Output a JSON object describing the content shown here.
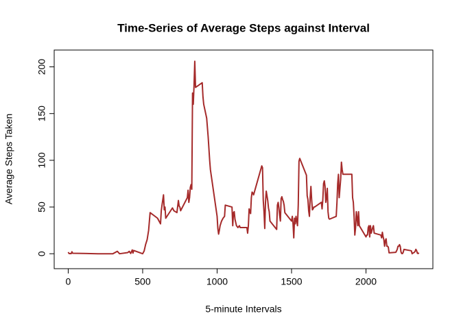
{
  "chart_data": {
    "type": "line",
    "title": "Time-Series of Average Steps against Interval",
    "xlabel": "5-minute Intervals",
    "ylabel": "Average Steps Taken",
    "color": "#a52a2a",
    "x": [
      0,
      5,
      10,
      15,
      20,
      25,
      30,
      100,
      200,
      300,
      330,
      345,
      400,
      410,
      420,
      430,
      435,
      440,
      500,
      510,
      520,
      530,
      540,
      550,
      600,
      610,
      620,
      625,
      630,
      640,
      645,
      650,
      655,
      700,
      710,
      720,
      730,
      740,
      745,
      750,
      755,
      800,
      805,
      810,
      815,
      820,
      825,
      830,
      835,
      840,
      845,
      850,
      855,
      900,
      905,
      910,
      930,
      940,
      950,
      955,
      1000,
      1005,
      1010,
      1015,
      1020,
      1030,
      1040,
      1050,
      1055,
      1100,
      1105,
      1110,
      1115,
      1120,
      1130,
      1140,
      1150,
      1155,
      1200,
      1205,
      1210,
      1215,
      1220,
      1225,
      1230,
      1235,
      1240,
      1245,
      1300,
      1305,
      1310,
      1315,
      1320,
      1325,
      1330,
      1335,
      1340,
      1345,
      1350,
      1355,
      1400,
      1405,
      1410,
      1415,
      1420,
      1425,
      1430,
      1435,
      1440,
      1445,
      1450,
      1455,
      1500,
      1505,
      1510,
      1515,
      1520,
      1525,
      1530,
      1535,
      1540,
      1545,
      1550,
      1555,
      1600,
      1605,
      1610,
      1615,
      1620,
      1625,
      1630,
      1635,
      1640,
      1645,
      1650,
      1655,
      1700,
      1705,
      1710,
      1715,
      1720,
      1725,
      1730,
      1735,
      1740,
      1745,
      1750,
      1755,
      1800,
      1805,
      1810,
      1815,
      1820,
      1825,
      1830,
      1835,
      1840,
      1845,
      1850,
      1855,
      1900,
      1905,
      1910,
      1915,
      1920,
      1925,
      1930,
      1935,
      1940,
      1945,
      1950,
      1955,
      2000,
      2005,
      2010,
      2015,
      2020,
      2025,
      2030,
      2035,
      2040,
      2045,
      2050,
      2055,
      2100,
      2105,
      2110,
      2115,
      2120,
      2125,
      2130,
      2135,
      2140,
      2145,
      2150,
      2155,
      2200,
      2205,
      2210,
      2215,
      2220,
      2225,
      2230,
      2235,
      2240,
      2245,
      2250,
      2255,
      2300,
      2305,
      2310,
      2315,
      2320,
      2325,
      2330,
      2335,
      2340,
      2345,
      2350,
      2355
    ],
    "y": [
      1.7,
      0.3,
      0.1,
      0.2,
      0.1,
      2.1,
      0.5,
      0.3,
      0,
      0,
      2.6,
      0,
      1.2,
      2.6,
      0.3,
      4.1,
      0.7,
      3.5,
      0,
      3,
      10,
      15,
      25,
      44,
      38,
      35,
      32,
      46,
      52,
      63,
      47,
      50,
      38,
      49,
      46,
      45,
      44,
      57,
      51,
      50,
      46,
      60,
      68,
      55,
      60,
      71,
      74,
      69,
      172,
      160,
      180,
      206,
      178,
      183,
      168,
      160,
      145,
      125,
      100,
      90,
      40,
      27,
      21,
      25,
      30,
      35,
      38,
      40,
      52,
      50,
      30,
      44,
      45,
      37,
      30,
      28,
      30,
      28,
      28,
      22,
      30,
      48,
      45,
      43,
      60,
      66,
      65,
      63,
      94,
      92,
      57,
      45,
      27,
      55,
      67,
      62,
      57,
      49,
      45,
      35,
      26,
      52,
      55,
      49,
      41,
      35,
      59,
      61,
      58,
      56,
      52,
      44,
      35,
      40,
      32,
      17,
      38,
      32,
      40,
      35,
      30,
      52,
      99,
      102,
      84,
      62,
      58,
      46,
      40,
      60,
      72,
      58,
      47,
      48,
      50,
      50,
      55,
      48,
      58,
      75,
      78,
      72,
      55,
      60,
      70,
      45,
      38,
      37,
      40,
      55,
      75,
      85,
      60,
      70,
      80,
      98,
      90,
      85,
      85,
      85,
      85,
      85,
      60,
      55,
      40,
      20,
      28,
      45,
      38,
      30,
      45,
      30,
      18,
      20,
      20,
      28,
      30,
      18,
      30,
      22,
      25,
      28,
      30,
      22,
      20,
      17,
      23,
      18,
      15,
      8,
      14,
      16,
      8,
      8,
      7,
      1,
      1.5,
      3,
      4.7,
      8,
      8,
      9.7,
      8,
      2,
      0.2,
      0.1,
      1.6,
      4.6,
      3.3,
      3,
      0,
      0.8,
      1,
      1.6,
      2.6,
      4.7,
      3.3,
      0.6,
      0.2,
      1.1
    ],
    "xlim": [
      -94.2,
      2449.2
    ],
    "ylim": [
      -16,
      218
    ],
    "xticks": [
      0,
      500,
      1000,
      1500,
      2000
    ],
    "yticks": [
      0,
      50,
      100,
      150,
      200
    ]
  }
}
